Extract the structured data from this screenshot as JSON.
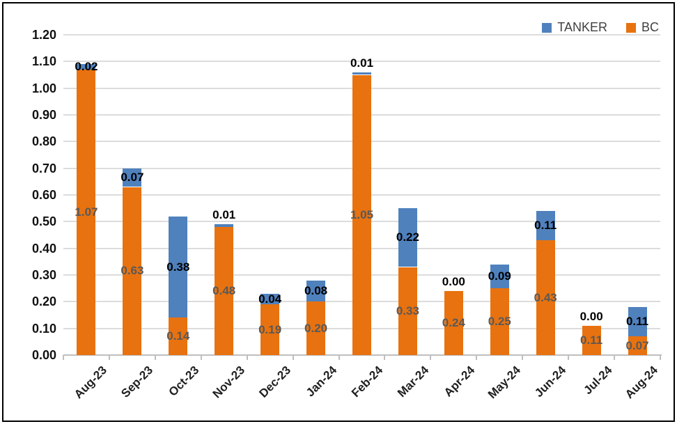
{
  "chart_data": {
    "type": "bar",
    "stacked": true,
    "title": "",
    "xlabel": "",
    "ylabel": "",
    "categories": [
      "Aug-23",
      "Sep-23",
      "Oct-23",
      "Nov-23",
      "Dec-23",
      "Jan-24",
      "Feb-24",
      "Mar-24",
      "Apr-24",
      "May-24",
      "Jun-24",
      "Jul-24",
      "Aug-24"
    ],
    "series": [
      {
        "name": "TANKER",
        "color": "#4F81BD",
        "label_color": "#000000",
        "stack_position": "top",
        "values": [
          0.02,
          0.07,
          0.38,
          0.01,
          0.04,
          0.08,
          0.01,
          0.22,
          0.0,
          0.09,
          0.11,
          0.0,
          0.11
        ]
      },
      {
        "name": "BC",
        "color": "#E8720F",
        "label_color": "#595959",
        "stack_position": "bottom",
        "values": [
          1.07,
          0.63,
          0.14,
          0.48,
          0.19,
          0.2,
          1.05,
          0.33,
          0.24,
          0.25,
          0.43,
          0.11,
          0.07
        ]
      }
    ],
    "ylim": [
      0,
      1.2
    ],
    "yticks": [
      "0.00",
      "0.10",
      "0.20",
      "0.30",
      "0.40",
      "0.50",
      "0.60",
      "0.70",
      "0.80",
      "0.90",
      "1.00",
      "1.10",
      "1.20"
    ],
    "grid": true,
    "legend_position": "top-right",
    "data_label_decimals": 2,
    "colors": {
      "gridline": "#DCDCDC",
      "axis": "#BFBFBF",
      "axis_text": "#111111",
      "legend_text": "#404040",
      "border": "#000000"
    }
  }
}
